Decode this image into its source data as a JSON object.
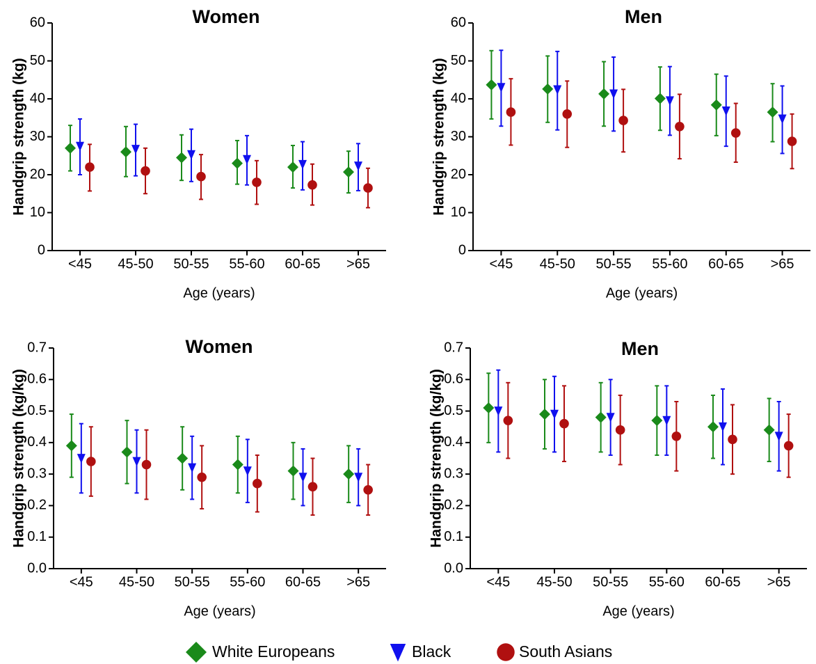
{
  "legend": [
    {
      "name": "White Europeans",
      "color": "#1a8a1a",
      "marker": "diamond"
    },
    {
      "name": "Black",
      "color": "#1010ee",
      "marker": "triangle-down"
    },
    {
      "name": "South Asians",
      "color": "#b01010",
      "marker": "circle"
    }
  ],
  "chart_data": [
    {
      "type": "errorbar",
      "title": "Women",
      "xlabel": "Age (years)",
      "ylabel": "Handgrip strength (kg)",
      "categories": [
        "<45",
        "45-50",
        "50-55",
        "55-60",
        "60-65",
        ">65"
      ],
      "ylim": [
        0,
        60
      ],
      "yticks": [
        0,
        10,
        20,
        30,
        40,
        50,
        60
      ],
      "series": [
        {
          "values": [
            27,
            26,
            24.5,
            23,
            22,
            20.7
          ],
          "low": [
            21,
            19.5,
            18.5,
            17.5,
            16.5,
            15.2
          ],
          "high": [
            33,
            32.7,
            30.5,
            29,
            27.7,
            26.2
          ]
        },
        {
          "values": [
            27.5,
            26.7,
            25.3,
            24,
            22.7,
            22.3
          ],
          "low": [
            20,
            19.7,
            18.2,
            17.3,
            16,
            15.8
          ],
          "high": [
            34.7,
            33.3,
            32,
            30.3,
            28.7,
            28.2
          ]
        },
        {
          "values": [
            22,
            21,
            19.5,
            18,
            17.3,
            16.5
          ],
          "low": [
            15.7,
            15,
            13.5,
            12.2,
            12,
            11.3
          ],
          "high": [
            28,
            27,
            25.3,
            23.7,
            22.8,
            21.7
          ]
        }
      ]
    },
    {
      "type": "errorbar",
      "title": "Men",
      "xlabel": "Age (years)",
      "ylabel": "Handgrip strength (kg)",
      "categories": [
        "<45",
        "45-50",
        "50-55",
        "55-60",
        "60-65",
        ">65"
      ],
      "ylim": [
        0,
        60
      ],
      "yticks": [
        0,
        10,
        20,
        30,
        40,
        50,
        60
      ],
      "series": [
        {
          "values": [
            43.7,
            42.6,
            41.3,
            40.1,
            38.4,
            36.5
          ],
          "low": [
            34.7,
            33.8,
            32.8,
            31.7,
            30.3,
            28.7
          ],
          "high": [
            52.7,
            51.3,
            49.8,
            48.4,
            46.5,
            44
          ]
        },
        {
          "values": [
            43,
            42.4,
            41.3,
            39.5,
            36.8,
            34.7
          ],
          "low": [
            32.8,
            31.8,
            31.5,
            30.4,
            27.5,
            25.6
          ],
          "high": [
            52.8,
            52.5,
            51,
            48.5,
            46,
            43.4
          ]
        },
        {
          "values": [
            36.5,
            36,
            34.3,
            32.7,
            31,
            28.8
          ],
          "low": [
            27.8,
            27.2,
            26,
            24.2,
            23.3,
            21.6
          ],
          "high": [
            45.3,
            44.7,
            42.5,
            41.2,
            38.8,
            36
          ]
        }
      ]
    },
    {
      "type": "errorbar",
      "title": "Women",
      "xlabel": "Age (years)",
      "ylabel": "Handgrip strength (kg/kg)",
      "categories": [
        "<45",
        "45-50",
        "50-55",
        "55-60",
        "60-65",
        ">65"
      ],
      "ylim": [
        0,
        0.7
      ],
      "yticks": [
        {
          "value": 0,
          "label": "0.0"
        },
        0.1,
        0.2,
        0.3,
        0.4,
        0.5,
        0.6,
        0.7
      ],
      "series": [
        {
          "values": [
            0.39,
            0.37,
            0.35,
            0.33,
            0.31,
            0.3
          ],
          "low": [
            0.29,
            0.27,
            0.25,
            0.24,
            0.22,
            0.21
          ],
          "high": [
            0.49,
            0.47,
            0.45,
            0.42,
            0.4,
            0.39
          ]
        },
        {
          "values": [
            0.35,
            0.34,
            0.32,
            0.31,
            0.29,
            0.29
          ],
          "low": [
            0.24,
            0.24,
            0.22,
            0.21,
            0.2,
            0.2
          ],
          "high": [
            0.46,
            0.44,
            0.42,
            0.41,
            0.38,
            0.38
          ]
        },
        {
          "values": [
            0.34,
            0.33,
            0.29,
            0.27,
            0.26,
            0.25
          ],
          "low": [
            0.23,
            0.22,
            0.19,
            0.18,
            0.17,
            0.17
          ],
          "high": [
            0.45,
            0.44,
            0.39,
            0.36,
            0.35,
            0.33
          ]
        }
      ]
    },
    {
      "type": "errorbar",
      "title": "Men",
      "xlabel": "Age (years)",
      "ylabel": "Handgrip strength (kg/kg)",
      "categories": [
        "<45",
        "45-50",
        "50-55",
        "55-60",
        "60-65",
        ">65"
      ],
      "ylim": [
        0,
        0.7
      ],
      "yticks": [
        {
          "value": 0,
          "label": "0.0"
        },
        0.1,
        0.2,
        0.3,
        0.4,
        0.5,
        0.6,
        0.7
      ],
      "series": [
        {
          "values": [
            0.51,
            0.49,
            0.48,
            0.47,
            0.45,
            0.44
          ],
          "low": [
            0.4,
            0.38,
            0.37,
            0.36,
            0.35,
            0.34
          ],
          "high": [
            0.62,
            0.6,
            0.59,
            0.58,
            0.55,
            0.54
          ]
        },
        {
          "values": [
            0.5,
            0.49,
            0.48,
            0.47,
            0.45,
            0.42
          ],
          "low": [
            0.37,
            0.37,
            0.36,
            0.36,
            0.33,
            0.31
          ],
          "high": [
            0.63,
            0.61,
            0.6,
            0.58,
            0.57,
            0.53
          ]
        },
        {
          "values": [
            0.47,
            0.46,
            0.44,
            0.42,
            0.41,
            0.39
          ],
          "low": [
            0.35,
            0.34,
            0.33,
            0.31,
            0.3,
            0.29
          ],
          "high": [
            0.59,
            0.58,
            0.55,
            0.53,
            0.52,
            0.49
          ]
        }
      ]
    }
  ]
}
